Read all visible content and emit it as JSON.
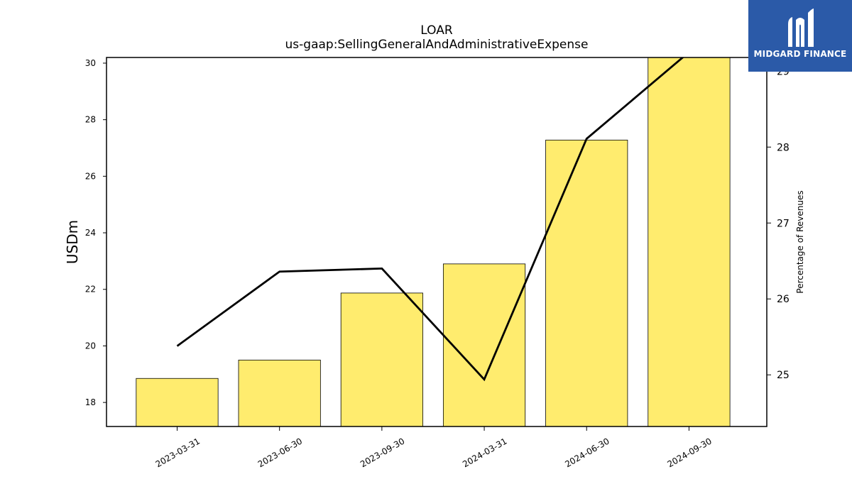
{
  "chart_data": {
    "type": "bar",
    "title": "LOAR",
    "subtitle": "us-gaap:SellingGeneralAndAdministrativeExpense",
    "categories": [
      "2023-03-31",
      "2023-06-30",
      "2023-09-30",
      "2024-03-31",
      "2024-06-30",
      "2024-09-30"
    ],
    "series": [
      {
        "values": [
          18.85,
          19.5,
          21.87,
          22.9,
          27.28,
          30.2
        ],
        "type": "bar",
        "axis": "left",
        "color": "#ffec6e"
      },
      {
        "values": [
          25.38,
          26.36,
          26.4,
          24.94,
          28.11,
          29.25
        ],
        "type": "line",
        "axis": "right",
        "color": "#000000"
      }
    ],
    "ylabel": "USDm",
    "ylabel_right": "Percentage of Revenues",
    "ylim": [
      17.15,
      30.2
    ],
    "ylim_right": [
      24.32,
      29.18
    ],
    "yticks": [
      18,
      20,
      22,
      24,
      26,
      28,
      30
    ],
    "yticks_right": [
      25,
      26,
      27,
      28,
      29
    ],
    "grid": false,
    "legend": "none"
  },
  "logo": {
    "text": "MIDGARD FINANCE",
    "background": "#2b5aa8"
  }
}
